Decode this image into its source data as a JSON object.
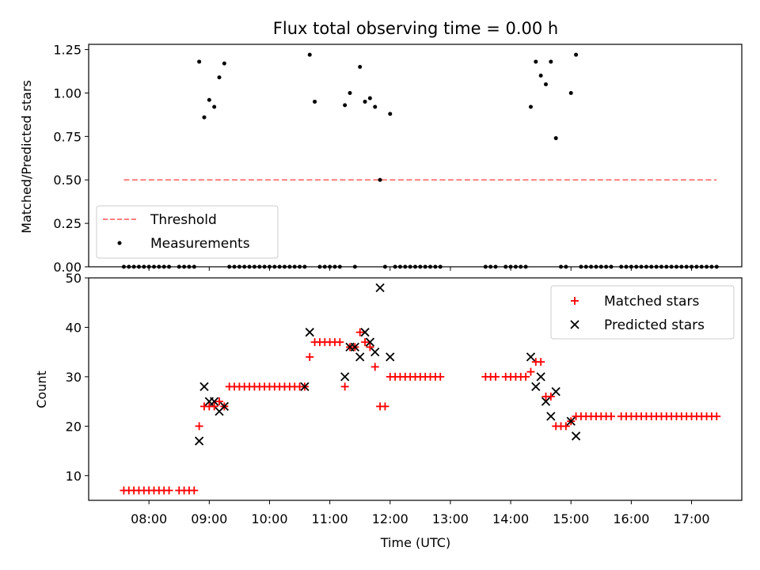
{
  "chart_data": [
    {
      "type": "scatter",
      "title": "Flux total observing time = 0.00 h",
      "ylabel": "Matched/Predicted stars",
      "ylim": [
        0,
        1.28
      ],
      "yticks": [
        "0.00",
        "0.25",
        "0.50",
        "0.75",
        "1.00",
        "1.25"
      ],
      "legend_placement": "lower-left",
      "threshold": {
        "name": "Threshold",
        "value": 0.5,
        "x_range": [
          "07:35",
          "17:25"
        ],
        "color": "#ff7f7f"
      },
      "measurements": {
        "name": "Measurements",
        "points": [
          [
            "07:35",
            0
          ],
          [
            "07:40",
            0
          ],
          [
            "07:45",
            0
          ],
          [
            "07:50",
            0
          ],
          [
            "07:55",
            0
          ],
          [
            "08:00",
            0
          ],
          [
            "08:05",
            0
          ],
          [
            "08:10",
            0
          ],
          [
            "08:15",
            0
          ],
          [
            "08:20",
            0
          ],
          [
            "08:30",
            0
          ],
          [
            "08:35",
            0
          ],
          [
            "08:40",
            0
          ],
          [
            "08:45",
            0
          ],
          [
            "08:50",
            1.18
          ],
          [
            "08:55",
            0.86
          ],
          [
            "09:00",
            0.96
          ],
          [
            "09:05",
            0.92
          ],
          [
            "09:10",
            1.09
          ],
          [
            "09:15",
            1.17
          ],
          [
            "09:20",
            0
          ],
          [
            "09:25",
            0
          ],
          [
            "09:30",
            0
          ],
          [
            "09:35",
            0
          ],
          [
            "09:40",
            0
          ],
          [
            "09:45",
            0
          ],
          [
            "09:50",
            0
          ],
          [
            "09:55",
            0
          ],
          [
            "10:00",
            0
          ],
          [
            "10:05",
            0
          ],
          [
            "10:10",
            0
          ],
          [
            "10:15",
            0
          ],
          [
            "10:20",
            0
          ],
          [
            "10:25",
            0
          ],
          [
            "10:30",
            0
          ],
          [
            "10:35",
            0
          ],
          [
            "10:40",
            1.22
          ],
          [
            "10:45",
            0.95
          ],
          [
            "10:50",
            0
          ],
          [
            "10:55",
            0
          ],
          [
            "11:00",
            0
          ],
          [
            "11:05",
            0
          ],
          [
            "11:10",
            0
          ],
          [
            "11:15",
            0.93
          ],
          [
            "11:20",
            1.0
          ],
          [
            "11:25",
            0
          ],
          [
            "11:30",
            1.15
          ],
          [
            "11:35",
            0.95
          ],
          [
            "11:40",
            0.97
          ],
          [
            "11:45",
            0.92
          ],
          [
            "11:50",
            0.5
          ],
          [
            "11:55",
            0
          ],
          [
            "12:00",
            0.88
          ],
          [
            "12:05",
            0
          ],
          [
            "12:10",
            0
          ],
          [
            "12:15",
            0
          ],
          [
            "12:20",
            0
          ],
          [
            "12:25",
            0
          ],
          [
            "12:30",
            0
          ],
          [
            "12:35",
            0
          ],
          [
            "12:40",
            0
          ],
          [
            "12:45",
            0
          ],
          [
            "12:50",
            0
          ],
          [
            "13:35",
            0
          ],
          [
            "13:40",
            0
          ],
          [
            "13:45",
            0
          ],
          [
            "13:55",
            0
          ],
          [
            "14:00",
            0
          ],
          [
            "14:05",
            0
          ],
          [
            "14:10",
            0
          ],
          [
            "14:15",
            0
          ],
          [
            "14:20",
            0.92
          ],
          [
            "14:25",
            1.18
          ],
          [
            "14:30",
            1.1
          ],
          [
            "14:35",
            1.05
          ],
          [
            "14:40",
            1.18
          ],
          [
            "14:45",
            0.74
          ],
          [
            "14:50",
            0
          ],
          [
            "14:55",
            0
          ],
          [
            "15:00",
            1.0
          ],
          [
            "15:05",
            1.22
          ],
          [
            "15:10",
            0
          ],
          [
            "15:15",
            0
          ],
          [
            "15:20",
            0
          ],
          [
            "15:25",
            0
          ],
          [
            "15:30",
            0
          ],
          [
            "15:35",
            0
          ],
          [
            "15:40",
            0
          ],
          [
            "15:50",
            0
          ],
          [
            "15:55",
            0
          ],
          [
            "16:00",
            0
          ],
          [
            "16:05",
            0
          ],
          [
            "16:10",
            0
          ],
          [
            "16:15",
            0
          ],
          [
            "16:20",
            0
          ],
          [
            "16:25",
            0
          ],
          [
            "16:30",
            0
          ],
          [
            "16:35",
            0
          ],
          [
            "16:40",
            0
          ],
          [
            "16:45",
            0
          ],
          [
            "16:50",
            0
          ],
          [
            "16:55",
            0
          ],
          [
            "17:00",
            0
          ],
          [
            "17:05",
            0
          ],
          [
            "17:10",
            0
          ],
          [
            "17:15",
            0
          ],
          [
            "17:20",
            0
          ],
          [
            "17:25",
            0
          ]
        ]
      }
    },
    {
      "type": "scatter",
      "xlabel": "Time (UTC)",
      "ylabel": "Count",
      "ylim": [
        5,
        50
      ],
      "yticks": [
        "10",
        "20",
        "30",
        "40",
        "50"
      ],
      "xticks": [
        "08:00",
        "09:00",
        "10:00",
        "11:00",
        "12:00",
        "13:00",
        "14:00",
        "15:00",
        "16:00",
        "17:00"
      ],
      "xlim": [
        "07:00",
        "17:50"
      ],
      "legend_placement": "top-right",
      "series": [
        {
          "name": "Matched stars",
          "color": "#ff0000",
          "marker": "plus",
          "points": [
            [
              "07:35",
              7
            ],
            [
              "07:40",
              7
            ],
            [
              "07:45",
              7
            ],
            [
              "07:50",
              7
            ],
            [
              "07:55",
              7
            ],
            [
              "08:00",
              7
            ],
            [
              "08:05",
              7
            ],
            [
              "08:10",
              7
            ],
            [
              "08:15",
              7
            ],
            [
              "08:20",
              7
            ],
            [
              "08:30",
              7
            ],
            [
              "08:35",
              7
            ],
            [
              "08:40",
              7
            ],
            [
              "08:45",
              7
            ],
            [
              "08:50",
              20
            ],
            [
              "08:55",
              24
            ],
            [
              "09:00",
              24
            ],
            [
              "09:05",
              24
            ],
            [
              "09:10",
              25
            ],
            [
              "09:15",
              24
            ],
            [
              "09:20",
              28
            ],
            [
              "09:25",
              28
            ],
            [
              "09:30",
              28
            ],
            [
              "09:35",
              28
            ],
            [
              "09:40",
              28
            ],
            [
              "09:45",
              28
            ],
            [
              "09:50",
              28
            ],
            [
              "09:55",
              28
            ],
            [
              "10:00",
              28
            ],
            [
              "10:05",
              28
            ],
            [
              "10:10",
              28
            ],
            [
              "10:15",
              28
            ],
            [
              "10:20",
              28
            ],
            [
              "10:25",
              28
            ],
            [
              "10:30",
              28
            ],
            [
              "10:35",
              28
            ],
            [
              "10:40",
              34
            ],
            [
              "10:45",
              37
            ],
            [
              "10:50",
              37
            ],
            [
              "10:55",
              37
            ],
            [
              "11:00",
              37
            ],
            [
              "11:05",
              37
            ],
            [
              "11:10",
              37
            ],
            [
              "11:15",
              28
            ],
            [
              "11:20",
              36
            ],
            [
              "11:25",
              36
            ],
            [
              "11:30",
              39
            ],
            [
              "11:35",
              37
            ],
            [
              "11:40",
              36
            ],
            [
              "11:45",
              32
            ],
            [
              "11:50",
              24
            ],
            [
              "11:55",
              24
            ],
            [
              "12:00",
              30
            ],
            [
              "12:05",
              30
            ],
            [
              "12:10",
              30
            ],
            [
              "12:15",
              30
            ],
            [
              "12:20",
              30
            ],
            [
              "12:25",
              30
            ],
            [
              "12:30",
              30
            ],
            [
              "12:35",
              30
            ],
            [
              "12:40",
              30
            ],
            [
              "12:45",
              30
            ],
            [
              "12:50",
              30
            ],
            [
              "13:35",
              30
            ],
            [
              "13:40",
              30
            ],
            [
              "13:45",
              30
            ],
            [
              "13:55",
              30
            ],
            [
              "14:00",
              30
            ],
            [
              "14:05",
              30
            ],
            [
              "14:10",
              30
            ],
            [
              "14:15",
              30
            ],
            [
              "14:20",
              31
            ],
            [
              "14:25",
              33
            ],
            [
              "14:30",
              33
            ],
            [
              "14:35",
              26
            ],
            [
              "14:40",
              26
            ],
            [
              "14:45",
              20
            ],
            [
              "14:50",
              20
            ],
            [
              "14:55",
              20
            ],
            [
              "15:00",
              21
            ],
            [
              "15:05",
              22
            ],
            [
              "15:10",
              22
            ],
            [
              "15:15",
              22
            ],
            [
              "15:20",
              22
            ],
            [
              "15:25",
              22
            ],
            [
              "15:30",
              22
            ],
            [
              "15:35",
              22
            ],
            [
              "15:40",
              22
            ],
            [
              "15:50",
              22
            ],
            [
              "15:55",
              22
            ],
            [
              "16:00",
              22
            ],
            [
              "16:05",
              22
            ],
            [
              "16:10",
              22
            ],
            [
              "16:15",
              22
            ],
            [
              "16:20",
              22
            ],
            [
              "16:25",
              22
            ],
            [
              "16:30",
              22
            ],
            [
              "16:35",
              22
            ],
            [
              "16:40",
              22
            ],
            [
              "16:45",
              22
            ],
            [
              "16:50",
              22
            ],
            [
              "16:55",
              22
            ],
            [
              "17:00",
              22
            ],
            [
              "17:05",
              22
            ],
            [
              "17:10",
              22
            ],
            [
              "17:15",
              22
            ],
            [
              "17:20",
              22
            ],
            [
              "17:25",
              22
            ]
          ]
        },
        {
          "name": "Predicted stars",
          "color": "#000000",
          "marker": "x",
          "points": [
            [
              "08:50",
              17
            ],
            [
              "08:55",
              28
            ],
            [
              "09:00",
              25
            ],
            [
              "09:05",
              25
            ],
            [
              "09:10",
              23
            ],
            [
              "09:15",
              24
            ],
            [
              "10:35",
              28
            ],
            [
              "10:40",
              39
            ],
            [
              "11:15",
              30
            ],
            [
              "11:20",
              36
            ],
            [
              "11:25",
              36
            ],
            [
              "11:30",
              34
            ],
            [
              "11:35",
              39
            ],
            [
              "11:40",
              37
            ],
            [
              "11:45",
              35
            ],
            [
              "11:50",
              48
            ],
            [
              "12:00",
              34
            ],
            [
              "14:20",
              34
            ],
            [
              "14:25",
              28
            ],
            [
              "14:30",
              30
            ],
            [
              "14:35",
              25
            ],
            [
              "14:40",
              22
            ],
            [
              "14:45",
              27
            ],
            [
              "15:00",
              21
            ],
            [
              "15:05",
              18
            ]
          ]
        }
      ]
    }
  ]
}
